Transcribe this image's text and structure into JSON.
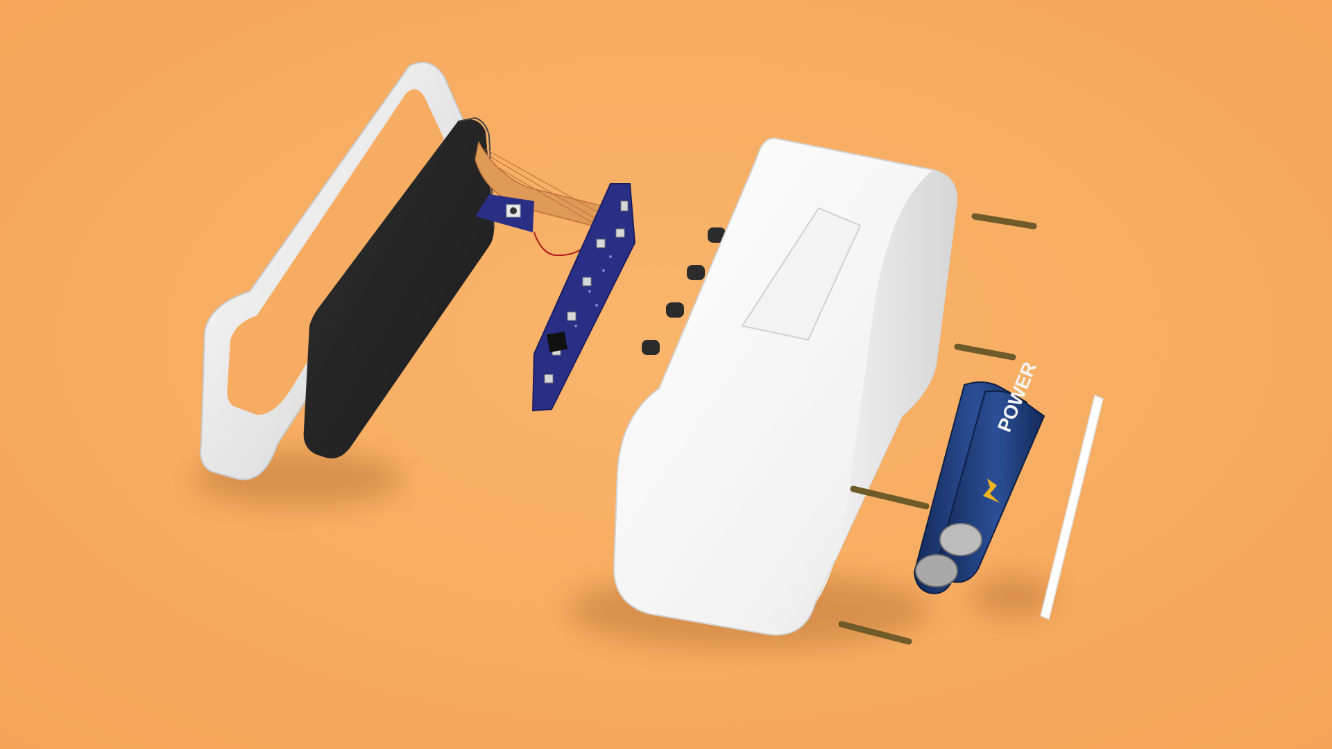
{
  "scene": {
    "background": "#f7ac63",
    "parts": [
      {
        "name": "front-frame",
        "color": "#eeeeee"
      },
      {
        "name": "display-panel",
        "color": "#262626"
      },
      {
        "name": "flex-ribbon",
        "color": "#e09a58"
      },
      {
        "name": "circuit-board",
        "color": "#2a2f86"
      },
      {
        "name": "housing",
        "color": "#fafafa"
      },
      {
        "name": "screws",
        "color": "#7a6632"
      },
      {
        "name": "batteries",
        "color": "#1e3a78"
      },
      {
        "name": "back-cover",
        "color": "#ffffff"
      }
    ]
  },
  "battery": {
    "label": "POWER"
  }
}
